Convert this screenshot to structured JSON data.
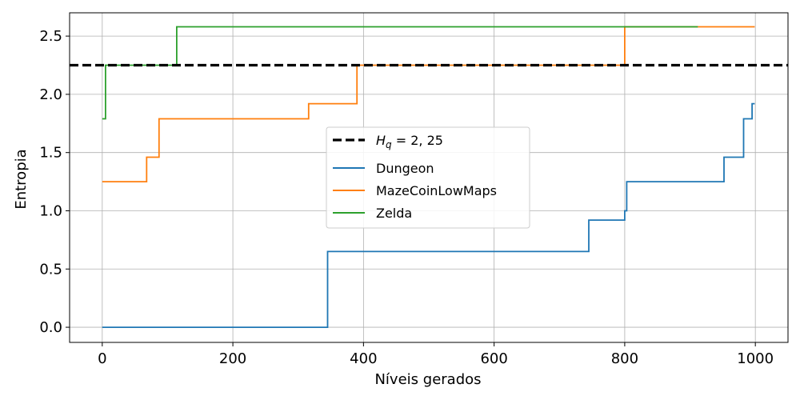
{
  "chart_data": {
    "type": "line",
    "xlabel": "Níveis gerados",
    "ylabel": "Entropia",
    "xlim": [
      -50,
      1050
    ],
    "ylim": [
      -0.13,
      2.7
    ],
    "xticks": [
      0,
      200,
      400,
      600,
      800,
      1000
    ],
    "xtick_labels": [
      "0",
      "200",
      "400",
      "600",
      "800",
      "1000"
    ],
    "yticks": [
      0.0,
      0.5,
      1.0,
      1.5,
      2.0,
      2.5
    ],
    "ytick_labels": [
      "0.0",
      "0.5",
      "1.0",
      "1.5",
      "2.0",
      "2.5"
    ],
    "grid": true,
    "legend_position": "center",
    "reference_line": {
      "label": "H_q = 2,25",
      "label_italic_part": "H",
      "label_subscript": "q",
      "label_rest": " = 2, 25",
      "y": 2.25,
      "color": "#000000",
      "style": "dashed"
    },
    "series": [
      {
        "name": "Dungeon",
        "color": "#1f77b4",
        "points": [
          [
            0,
            0.0
          ],
          [
            345,
            0.0
          ],
          [
            345,
            0.65
          ],
          [
            745,
            0.65
          ],
          [
            745,
            0.92
          ],
          [
            800,
            0.92
          ],
          [
            800,
            1.0
          ],
          [
            803,
            1.0
          ],
          [
            803,
            1.25
          ],
          [
            952,
            1.25
          ],
          [
            952,
            1.46
          ],
          [
            982,
            1.46
          ],
          [
            982,
            1.79
          ],
          [
            995,
            1.79
          ],
          [
            995,
            1.92
          ],
          [
            999,
            1.92
          ]
        ]
      },
      {
        "name": "MazeCoinLowMaps",
        "color": "#ff7f0e",
        "points": [
          [
            0,
            1.25
          ],
          [
            68,
            1.25
          ],
          [
            68,
            1.46
          ],
          [
            87,
            1.46
          ],
          [
            87,
            1.79
          ],
          [
            316,
            1.79
          ],
          [
            316,
            1.92
          ],
          [
            390,
            1.92
          ],
          [
            390,
            2.25
          ],
          [
            800,
            2.25
          ],
          [
            800,
            2.58
          ],
          [
            999,
            2.58
          ]
        ]
      },
      {
        "name": "Zelda",
        "color": "#2ca02c",
        "points": [
          [
            0,
            1.79
          ],
          [
            5,
            1.79
          ],
          [
            5,
            2.25
          ],
          [
            114,
            2.25
          ],
          [
            114,
            2.58
          ],
          [
            912,
            2.58
          ]
        ]
      }
    ]
  }
}
